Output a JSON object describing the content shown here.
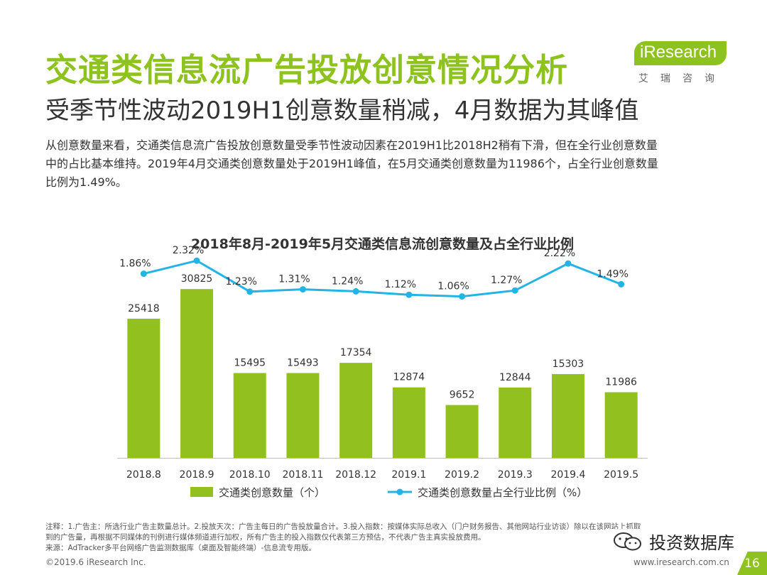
{
  "header": {
    "title": "交通类信息流广告投放创意情况分析",
    "subtitle": "受季节性波动2019H1创意数量稍减，4月数据为其峰值"
  },
  "logo": {
    "brand": "iResearch",
    "tagline": "艾瑞咨询"
  },
  "description": [
    "从创意数量来看，交通类信息流广告投放创意数量受季节性波动因素在2019H1比2018H2稍有下滑，但在全行业创意数量",
    "中的占比基本维持。2019年4月交通类创意数量处于2019H1峰值，在5月交通类创意数量为11986个，占全行业创意数量",
    "比例为1.49%。"
  ],
  "chart_data": {
    "type": "bar",
    "title": "2018年8月-2019年5月交通类信息流创意数量及占全行业比例",
    "categories": [
      "2018.8",
      "2018.9",
      "2018.10",
      "2018.11",
      "2018.12",
      "2019.1",
      "2019.2",
      "2019.3",
      "2019.4",
      "2019.5"
    ],
    "series": [
      {
        "name": "交通类创意数量（个）",
        "type": "bar",
        "values": [
          25418,
          30825,
          15495,
          15493,
          17354,
          12874,
          9652,
          12844,
          15303,
          11986
        ],
        "labels": [
          "25418",
          "30825",
          "15495",
          "15493",
          "17354",
          "12874",
          "9652",
          "12844",
          "15303",
          "11986"
        ],
        "color": "#92c01f"
      },
      {
        "name": "交通类创意数量占全行业比例（%）",
        "type": "line",
        "values": [
          1.86,
          2.32,
          1.23,
          1.31,
          1.24,
          1.12,
          1.06,
          1.27,
          2.22,
          1.49
        ],
        "labels": [
          "1.86%",
          "2.32%",
          "1.23%",
          "1.31%",
          "1.24%",
          "1.12%",
          "1.06%",
          "1.27%",
          "2.22%",
          "1.49%"
        ],
        "color": "#23b4e6"
      }
    ],
    "ylim": [
      0,
      35000
    ],
    "y2lim": [
      0,
      2.5
    ],
    "grid": false,
    "legend": "bottom"
  },
  "notes": [
    "注释：1.广告主：所选行业广告主数量总计。2.投放天次：广告主每日的广告投放量合计。3.投入指数：按媒体实际总收入（门户财务报告、其他网站行业访谈）除以在该网站上抓取",
    "到的广告量，再根据不同媒体的刊例进行媒体频道进行加权，所有广告主的投入指数仅代表第三方预估，不代表广告主真实投放费用。",
    "来源：AdTracker多平台网络广告监测数据库（桌面及智能终端）-信息流专用版。"
  ],
  "footer": {
    "copyright": "©2019.6 iResearch Inc.",
    "website": "www.iresearch.com.cn",
    "page_number": "16"
  },
  "watermark": {
    "text": "投资数据库"
  }
}
